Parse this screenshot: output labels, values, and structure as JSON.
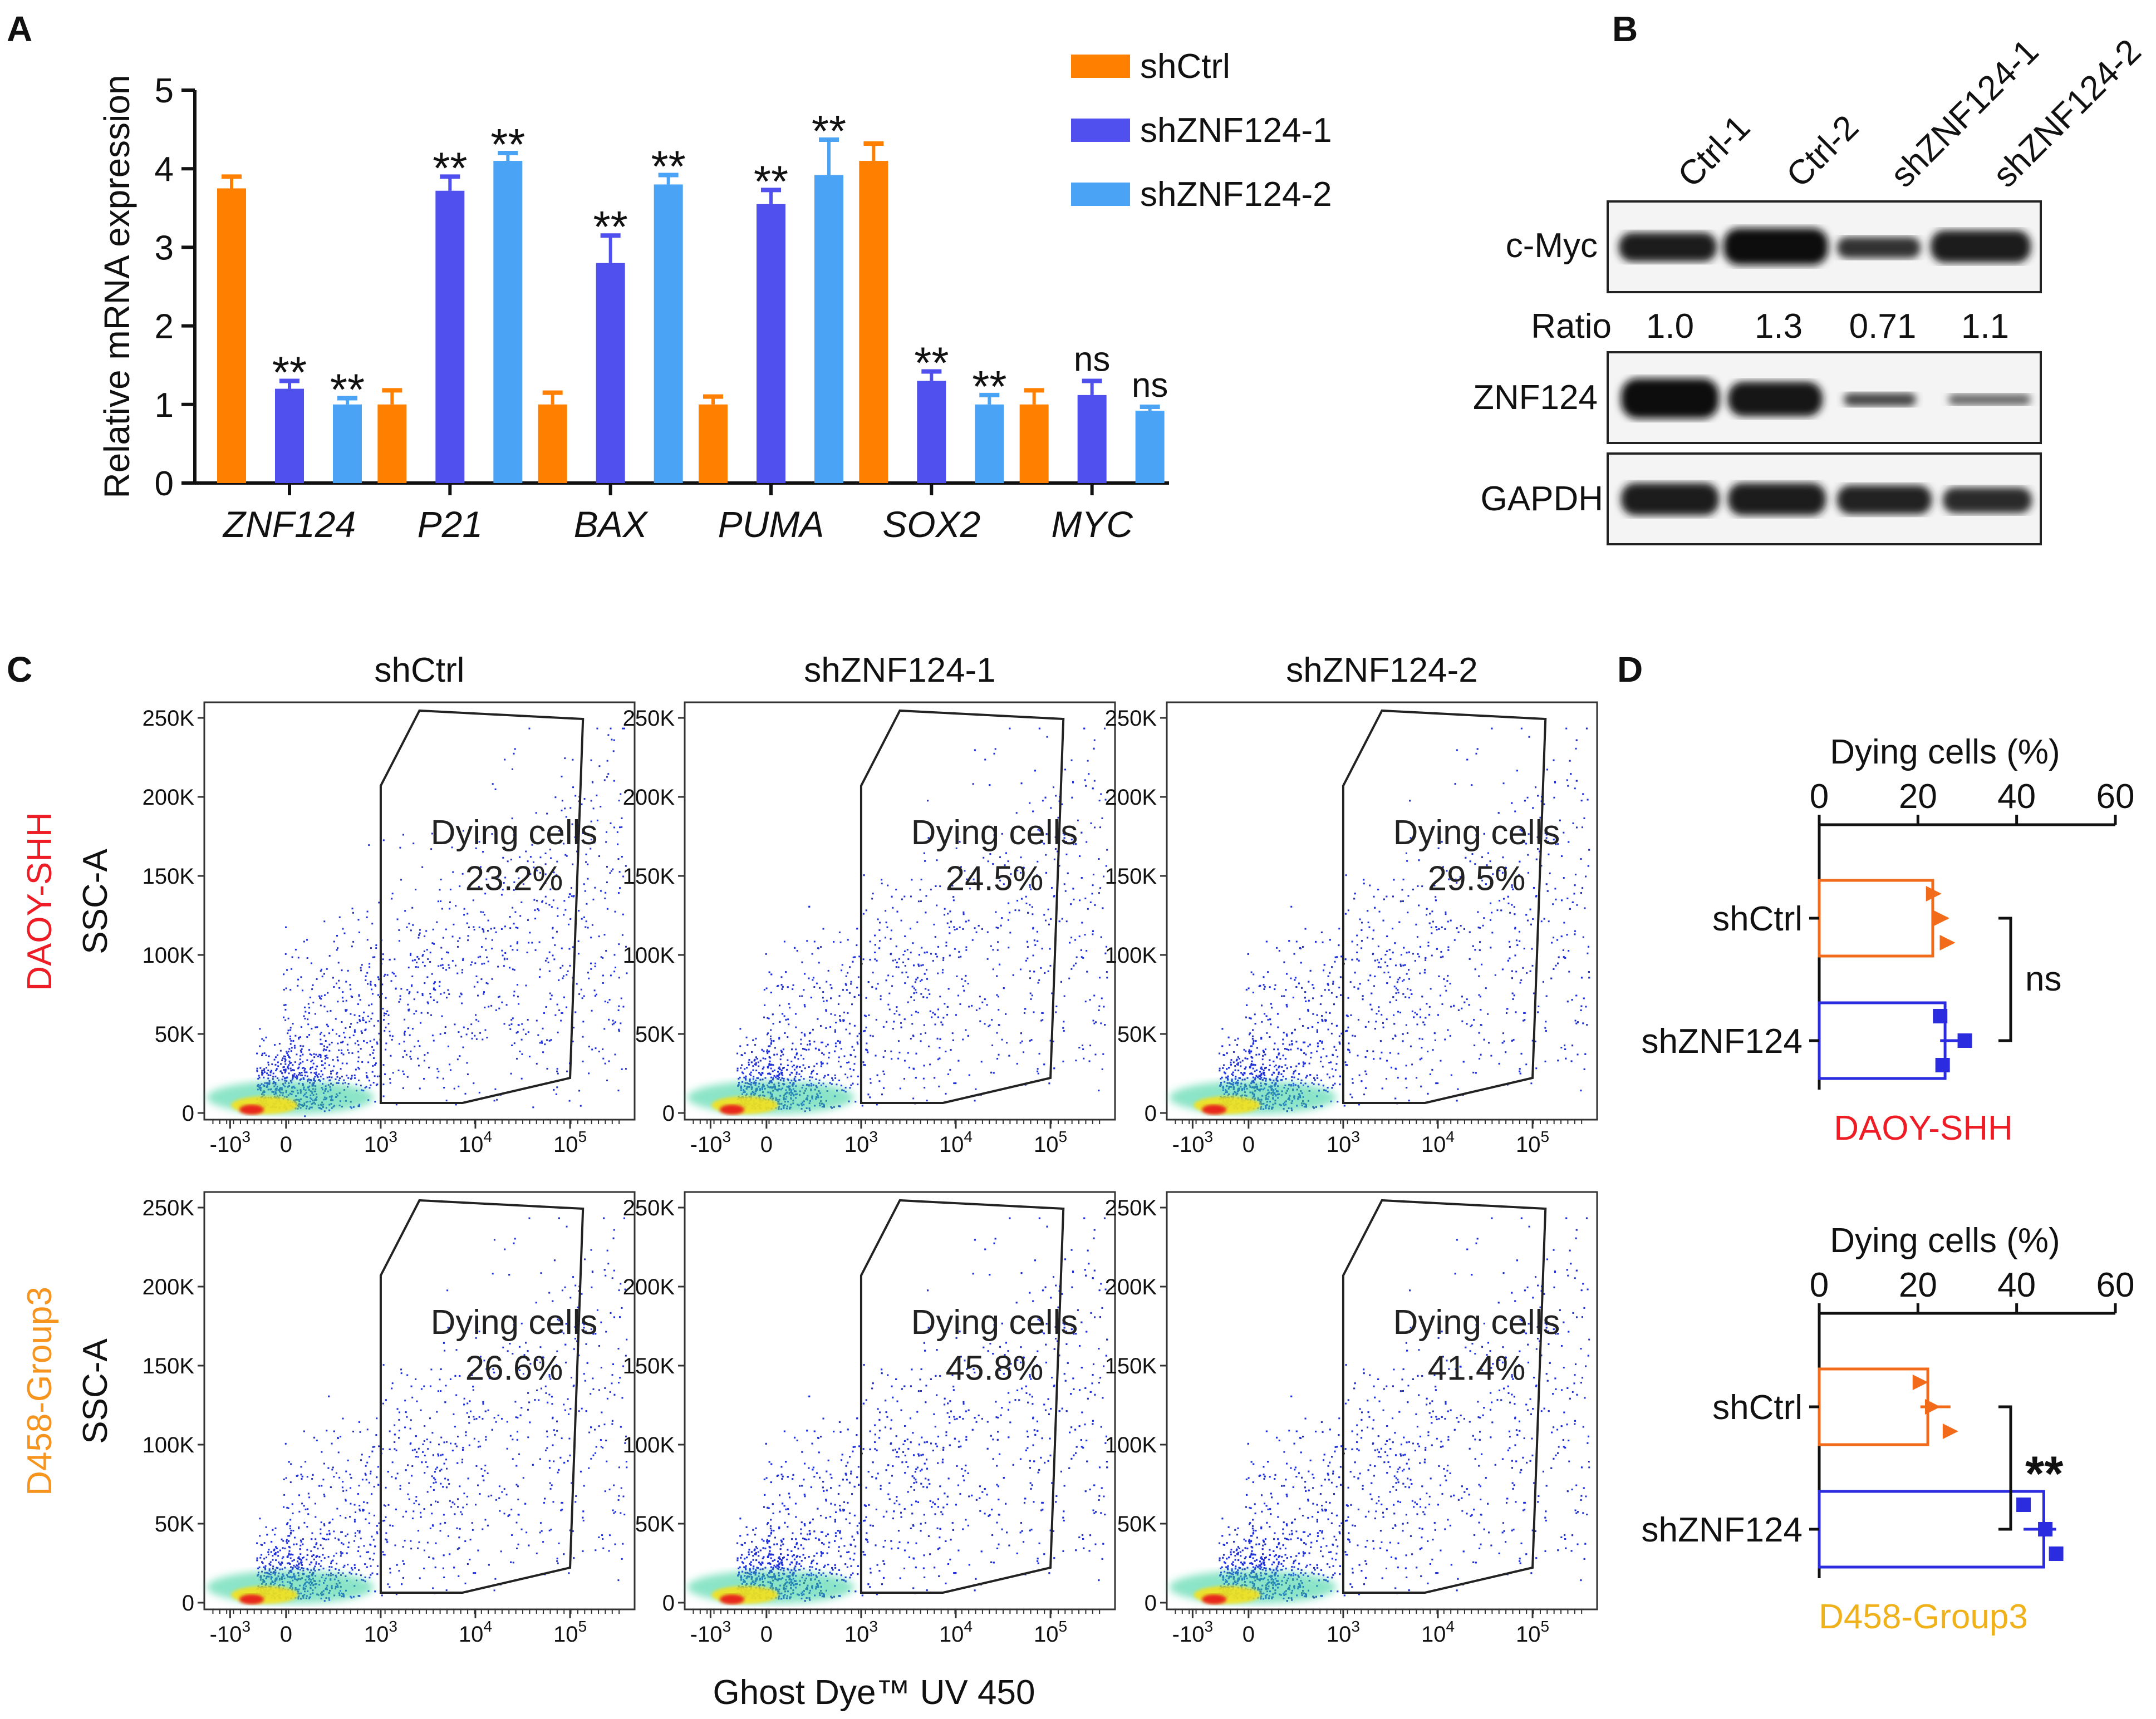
{
  "colors": {
    "shCtrl": "#ff7f00",
    "shZNF124_1": "#5050ee",
    "shZNF124_2": "#4aa3f5",
    "d_shCtrl": "#f26b1a",
    "d_shZNF124": "#2b2be0",
    "daoy_label": "#ee1c25",
    "d458_label": "#f7941d",
    "d458_bottom_label": "#f0b21a"
  },
  "panel_a": {
    "letter": "A",
    "chart_data": {
      "type": "bar",
      "ylabel": "Relative mRNA expression",
      "ylim": [
        0,
        5
      ],
      "yticks": [
        "0",
        "1",
        "2",
        "3",
        "4",
        "5"
      ],
      "categories": [
        "ZNF124",
        "P21",
        "BAX",
        "PUMA",
        "SOX2",
        "MYC"
      ],
      "series": [
        {
          "name": "shCtrl",
          "values": [
            3.75,
            1.0,
            1.0,
            1.0,
            4.1,
            1.0
          ],
          "errors": [
            0.15,
            0.18,
            0.15,
            0.1,
            0.22,
            0.18
          ]
        },
        {
          "name": "shZNF124-1",
          "values": [
            1.2,
            3.72,
            2.8,
            3.55,
            1.3,
            1.12
          ],
          "errors": [
            0.1,
            0.18,
            0.35,
            0.18,
            0.12,
            0.18
          ]
        },
        {
          "name": "shZNF124-2",
          "values": [
            1.0,
            4.1,
            3.8,
            3.92,
            1.0,
            0.92
          ],
          "errors": [
            0.08,
            0.1,
            0.12,
            0.45,
            0.12,
            0.05
          ]
        }
      ],
      "significance": [
        [
          "",
          "**",
          "**"
        ],
        [
          "",
          "**",
          "**"
        ],
        [
          "",
          "**",
          "**"
        ],
        [
          "",
          "**",
          "**"
        ],
        [
          "",
          "**",
          "**"
        ],
        [
          "",
          "ns",
          "ns"
        ]
      ]
    }
  },
  "panel_b": {
    "letter": "B",
    "lanes": [
      "Ctrl-1",
      "Ctrl-2",
      "shZNF124-1",
      "shZNF124-2"
    ],
    "blots": [
      "c-Myc",
      "ZNF124",
      "GAPDH"
    ],
    "ratio_label": "Ratio",
    "ratios": [
      "1.0",
      "1.3",
      "0.71",
      "1.1"
    ]
  },
  "panel_c": {
    "letter": "C",
    "columns": [
      "shCtrl",
      "shZNF124-1",
      "shZNF124-2"
    ],
    "rows": [
      "DAOY-SHH",
      "D458-Group3"
    ],
    "ylabel": "SSC-A",
    "xlabel": "Ghost Dye™ UV 450",
    "yticks": [
      "250K",
      "200K",
      "150K",
      "100K",
      "50K",
      "0"
    ],
    "xticks": [
      "-10",
      "0",
      "10",
      "10",
      "10"
    ],
    "xtick_exps": [
      "3",
      "",
      "3",
      "4",
      "5"
    ],
    "gate_label": "Dying cells",
    "percentages": [
      [
        "23.2%",
        "24.5%",
        "29.5%"
      ],
      [
        "26.6%",
        "45.8%",
        "41.4%"
      ]
    ]
  },
  "panel_d": {
    "letter": "D",
    "chart_data": [
      {
        "type": "bar",
        "orientation": "horizontal",
        "title": "Dying cells (%)",
        "xlim": [
          0,
          60
        ],
        "xticks": [
          "0",
          "20",
          "40",
          "60"
        ],
        "categories": [
          "shCtrl",
          "shZNF124"
        ],
        "values": [
          23,
          25.5
        ],
        "points": [
          [
            23.2,
            24.8,
            26.0
          ],
          [
            24.5,
            29.5,
            25.0
          ]
        ],
        "significance": "ns",
        "cell_line": "DAOY-SHH"
      },
      {
        "type": "bar",
        "orientation": "horizontal",
        "title": "Dying cells (%)",
        "xlim": [
          0,
          60
        ],
        "xticks": [
          "0",
          "20",
          "40",
          "60"
        ],
        "categories": [
          "shCtrl",
          "shZNF124"
        ],
        "values": [
          22,
          45.5
        ],
        "points": [
          [
            20.5,
            23.0,
            26.6
          ],
          [
            41.4,
            45.8,
            48.0
          ]
        ],
        "significance": "**",
        "cell_line": "D458-Group3"
      }
    ]
  }
}
